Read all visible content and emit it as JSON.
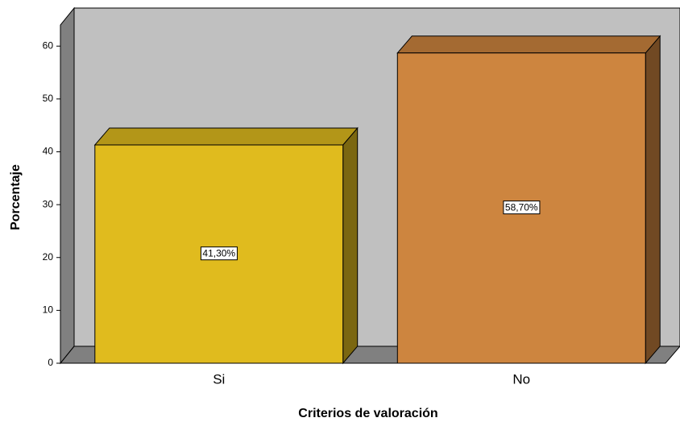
{
  "chart_data": {
    "type": "bar3d",
    "xlabel": "Criterios de valoración",
    "ylabel": "Porcentaje",
    "categories": [
      "Si",
      "No"
    ],
    "values": [
      41.3,
      58.7
    ],
    "value_labels": [
      "41,30%",
      "58,70%"
    ],
    "colors": [
      "#e0bb1e",
      "#cd853f"
    ],
    "ylim": [
      0,
      64
    ],
    "yticks": [
      0,
      10,
      20,
      30,
      40,
      50,
      60
    ]
  }
}
